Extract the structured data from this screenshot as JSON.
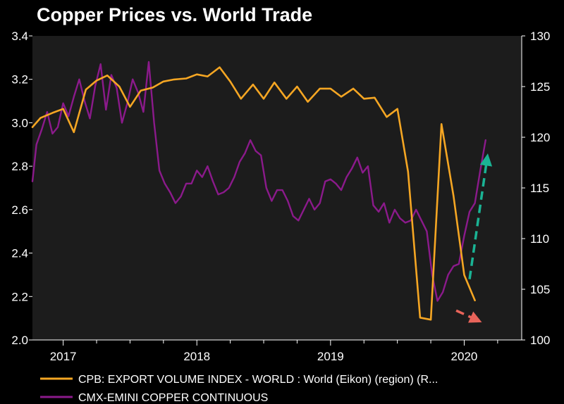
{
  "chart_data": {
    "type": "line",
    "title": "Copper Prices vs. World Trade",
    "x_range": [
      2016.77,
      2020.43
    ],
    "x_ticks": [
      {
        "label": "2017",
        "value": 2017.0
      },
      {
        "label": "2018",
        "value": 2018.0
      },
      {
        "label": "2019",
        "value": 2019.0
      },
      {
        "label": "2020",
        "value": 2020.0
      }
    ],
    "y_left": {
      "ylim": [
        2.0,
        3.4
      ],
      "ticks": [
        "2.0",
        "2.2",
        "2.4",
        "2.6",
        "2.8",
        "3.0",
        "3.2",
        "3.4"
      ]
    },
    "y_right": {
      "ylim": [
        100,
        130
      ],
      "ticks": [
        "100",
        "105",
        "110",
        "115",
        "120",
        "125",
        "130"
      ]
    },
    "colors": {
      "background": "#1c1c1c",
      "frame": "#000000",
      "cpb": "#f5a623",
      "copper": "#8b1a8b",
      "arrow_up": "#1ab394",
      "arrow_down": "#e8645a"
    },
    "series": [
      {
        "name": "CPB: EXPORT VOLUME INDEX - WORLD : World (Eikon) (region) (R...",
        "axis": "right",
        "color": "#f5a623",
        "x": [
          2016.77,
          2016.83,
          2016.92,
          2017.0,
          2017.08,
          2017.17,
          2017.25,
          2017.33,
          2017.42,
          2017.5,
          2017.58,
          2017.67,
          2017.75,
          2017.83,
          2017.92,
          2018.0,
          2018.08,
          2018.17,
          2018.25,
          2018.33,
          2018.42,
          2018.5,
          2018.58,
          2018.67,
          2018.75,
          2018.83,
          2018.92,
          2019.0,
          2019.08,
          2019.17,
          2019.25,
          2019.33,
          2019.42,
          2019.5,
          2019.58,
          2019.67,
          2019.75,
          2019.83,
          2019.92,
          2020.0,
          2020.08
        ],
        "values": [
          121.0,
          121.9,
          122.4,
          122.8,
          120.5,
          124.7,
          125.6,
          126.1,
          125.0,
          123.0,
          124.6,
          124.9,
          125.5,
          125.7,
          125.8,
          126.2,
          126.0,
          126.9,
          125.5,
          123.8,
          125.2,
          123.8,
          125.4,
          123.8,
          125.0,
          123.5,
          124.8,
          124.8,
          124.0,
          124.8,
          123.8,
          123.9,
          122.0,
          122.8,
          116.6,
          102.2,
          102.0,
          121.3,
          114.2,
          106.4,
          103.9
        ],
        "x_display_count": 38
      },
      {
        "name": "CMX-EMINI COPPER CONTINUOUS",
        "axis": "left",
        "color": "#8b1a8b",
        "x": [
          2016.77,
          2016.8,
          2016.84,
          2016.88,
          2016.92,
          2016.96,
          2017.0,
          2017.04,
          2017.08,
          2017.12,
          2017.16,
          2017.2,
          2017.24,
          2017.28,
          2017.32,
          2017.36,
          2017.4,
          2017.44,
          2017.48,
          2017.52,
          2017.56,
          2017.6,
          2017.64,
          2017.68,
          2017.72,
          2017.76,
          2017.8,
          2017.84,
          2017.88,
          2017.92,
          2017.96,
          2018.0,
          2018.04,
          2018.08,
          2018.12,
          2018.16,
          2018.2,
          2018.24,
          2018.28,
          2018.32,
          2018.36,
          2018.4,
          2018.44,
          2018.48,
          2018.52,
          2018.56,
          2018.6,
          2018.64,
          2018.68,
          2018.72,
          2018.76,
          2018.8,
          2018.84,
          2018.88,
          2018.92,
          2018.96,
          2019.0,
          2019.04,
          2019.08,
          2019.12,
          2019.16,
          2019.2,
          2019.24,
          2019.28,
          2019.32,
          2019.36,
          2019.4,
          2019.44,
          2019.48,
          2019.52,
          2019.56,
          2019.6,
          2019.64,
          2019.68,
          2019.72,
          2019.76,
          2019.8,
          2019.84,
          2019.88,
          2019.92,
          2019.96,
          2020.0,
          2020.04,
          2020.08,
          2020.12,
          2020.16
        ],
        "values": [
          2.73,
          2.9,
          2.97,
          3.05,
          2.95,
          2.98,
          3.09,
          3.03,
          3.12,
          3.2,
          3.1,
          3.02,
          3.17,
          3.27,
          3.06,
          3.22,
          3.16,
          3.0,
          3.09,
          3.2,
          3.14,
          3.05,
          3.28,
          3.0,
          2.78,
          2.72,
          2.68,
          2.63,
          2.66,
          2.72,
          2.72,
          2.78,
          2.75,
          2.8,
          2.73,
          2.67,
          2.68,
          2.7,
          2.75,
          2.82,
          2.86,
          2.92,
          2.87,
          2.85,
          2.7,
          2.64,
          2.69,
          2.69,
          2.64,
          2.57,
          2.55,
          2.6,
          2.65,
          2.6,
          2.63,
          2.73,
          2.74,
          2.72,
          2.69,
          2.75,
          2.79,
          2.84,
          2.77,
          2.8,
          2.62,
          2.59,
          2.63,
          2.54,
          2.6,
          2.56,
          2.54,
          2.55,
          2.6,
          2.55,
          2.5,
          2.3,
          2.18,
          2.22,
          2.3,
          2.34,
          2.35,
          2.48,
          2.59,
          2.63,
          2.78,
          2.92
        ]
      }
    ],
    "annotations": [
      {
        "name": "arrow-down-red",
        "from": [
          2019.94,
          102.9
        ],
        "to": [
          2020.09,
          102.0
        ],
        "color": "#e8645a"
      },
      {
        "name": "arrow-up-teal",
        "from": [
          2020.04,
          106.0
        ],
        "to": [
          2020.17,
          117.8
        ],
        "color": "#1ab394"
      }
    ],
    "legend": {
      "position": "bottom",
      "entries": [
        {
          "label": "CPB: EXPORT VOLUME INDEX - WORLD : World (Eikon) (region) (R...",
          "color": "#f5a623"
        },
        {
          "label": "CMX-EMINI COPPER CONTINUOUS",
          "color": "#8b1a8b"
        }
      ]
    }
  }
}
